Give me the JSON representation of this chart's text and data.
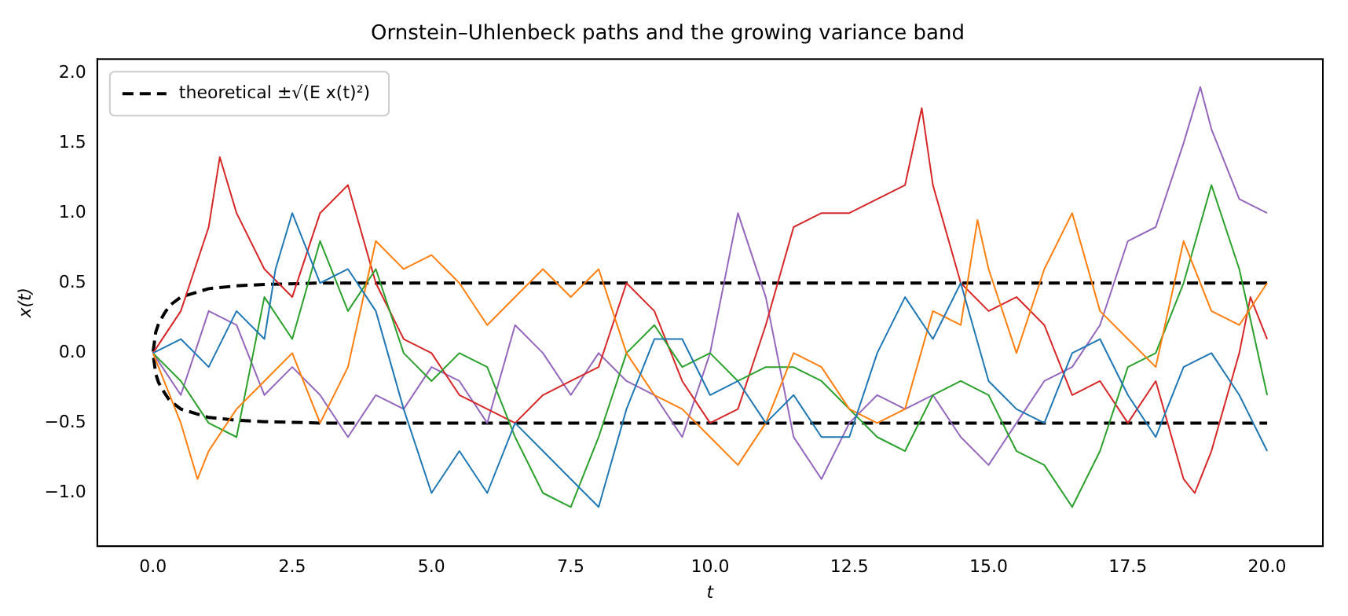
{
  "chart_data": {
    "type": "line",
    "title": "Ornstein–Uhlenbeck paths and the growing variance band",
    "xlabel": "t",
    "ylabel": "x(t)",
    "xlim": [
      -1,
      21
    ],
    "xticks": [
      {
        "value": 0,
        "label": "0.0"
      },
      2.5,
      {
        "value": 5,
        "label": "5.0"
      },
      {
        "value": 7.5,
        "label": "7.5"
      },
      {
        "value": 10,
        "label": "10.0"
      },
      12.5,
      {
        "value": 15,
        "label": "15.0"
      },
      17.5,
      {
        "value": 20,
        "label": "20.0"
      }
    ],
    "ylim": [
      -1.38,
      2.1
    ],
    "yticks": [
      {
        "value": -1,
        "label": "−1.0"
      },
      {
        "value": -0.5,
        "label": "−0.5"
      },
      {
        "value": 0,
        "label": "0.0"
      },
      0.5,
      {
        "value": 1,
        "label": "1.0"
      },
      1.5,
      {
        "value": 2,
        "label": "2.0"
      }
    ],
    "grid": false,
    "legend": "top left",
    "marker": "none",
    "series": [
      {
        "color": "#1f77b4",
        "x": [
          0,
          0.5,
          1,
          1.5,
          2,
          2.2,
          2.5,
          3,
          3.5,
          4,
          4.5,
          5,
          5.5,
          6,
          6.5,
          7,
          7.5,
          8,
          8.5,
          9,
          9.5,
          10,
          10.5,
          11,
          11.5,
          12,
          12.5,
          13,
          13.5,
          14,
          14.5,
          15,
          15.5,
          16,
          16.5,
          17,
          17.5,
          18,
          18.5,
          19,
          19.5,
          20
        ],
        "values": [
          0,
          0.1,
          -0.1,
          0.3,
          0.1,
          0.6,
          1,
          0.5,
          0.6,
          0.3,
          -0.4,
          -1,
          -0.7,
          -1,
          -0.5,
          -0.7,
          -0.9,
          -1.1,
          -0.4,
          0.1,
          0.1,
          -0.3,
          -0.2,
          -0.5,
          -0.3,
          -0.6,
          -0.6,
          0,
          0.4,
          0.1,
          0.5,
          -0.2,
          -0.4,
          -0.5,
          0,
          0.1,
          -0.3,
          -0.6,
          -0.1,
          0,
          -0.3,
          -0.7
        ]
      },
      {
        "color": "#ff7f0e",
        "x": [
          0,
          0.5,
          0.8,
          1,
          1.5,
          2,
          2.5,
          3,
          3.5,
          4,
          4.5,
          5,
          5.5,
          6,
          6.5,
          7,
          7.5,
          8,
          8.5,
          9,
          9.5,
          10,
          10.5,
          11,
          11.5,
          12,
          12.5,
          13,
          13.5,
          14,
          14.5,
          14.8,
          15,
          15.5,
          16,
          16.5,
          17,
          17.5,
          18,
          18.5,
          19,
          19.5,
          20
        ],
        "values": [
          0,
          -0.5,
          -0.9,
          -0.7,
          -0.4,
          -0.2,
          0,
          -0.5,
          -0.1,
          0.8,
          0.6,
          0.7,
          0.5,
          0.2,
          0.4,
          0.6,
          0.4,
          0.6,
          0,
          -0.3,
          -0.4,
          -0.6,
          -0.8,
          -0.5,
          0,
          -0.1,
          -0.4,
          -0.5,
          -0.4,
          0.3,
          0.2,
          0.95,
          0.6,
          0,
          0.6,
          1,
          0.3,
          0.1,
          -0.1,
          0.8,
          0.3,
          0.2,
          0.5
        ]
      },
      {
        "color": "#2ca02c",
        "x": [
          0,
          0.5,
          1,
          1.5,
          2,
          2.5,
          3,
          3.5,
          4,
          4.5,
          5,
          5.5,
          6,
          6.5,
          7,
          7.5,
          8,
          8.5,
          9,
          9.5,
          10,
          10.5,
          11,
          11.5,
          12,
          12.5,
          13,
          13.5,
          14,
          14.5,
          15,
          15.5,
          16,
          16.5,
          17,
          17.5,
          18,
          18.5,
          19,
          19.5,
          20
        ],
        "values": [
          0,
          -0.2,
          -0.5,
          -0.6,
          0.4,
          0.1,
          0.8,
          0.3,
          0.6,
          0,
          -0.2,
          0,
          -0.1,
          -0.6,
          -1,
          -1.1,
          -0.6,
          0,
          0.2,
          -0.1,
          0,
          -0.2,
          -0.1,
          -0.1,
          -0.2,
          -0.4,
          -0.6,
          -0.7,
          -0.3,
          -0.2,
          -0.3,
          -0.7,
          -0.8,
          -1.1,
          -0.7,
          -0.1,
          0,
          0.5,
          1.2,
          0.6,
          -0.3
        ]
      },
      {
        "color": "#d62728",
        "x": [
          0,
          0.5,
          1,
          1.2,
          1.5,
          2,
          2.5,
          3,
          3.5,
          4,
          4.5,
          5,
          5.5,
          6,
          6.5,
          7,
          7.5,
          8,
          8.5,
          9,
          9.5,
          10,
          10.5,
          11,
          11.5,
          12,
          12.5,
          13,
          13.5,
          13.8,
          14,
          14.5,
          15,
          15.5,
          16,
          16.5,
          17,
          17.5,
          18,
          18.5,
          18.7,
          19,
          19.5,
          19.7,
          20
        ],
        "values": [
          0,
          0.3,
          0.9,
          1.4,
          1,
          0.6,
          0.4,
          1,
          1.2,
          0.5,
          0.1,
          0,
          -0.3,
          -0.4,
          -0.5,
          -0.3,
          -0.2,
          -0.1,
          0.5,
          0.3,
          -0.2,
          -0.5,
          -0.4,
          0.2,
          0.9,
          1,
          1,
          1.1,
          1.2,
          1.75,
          1.2,
          0.5,
          0.3,
          0.4,
          0.2,
          -0.3,
          -0.2,
          -0.5,
          -0.2,
          -0.9,
          -1,
          -0.7,
          0,
          0.4,
          0.1
        ]
      },
      {
        "color": "#9467bd",
        "x": [
          0,
          0.5,
          1,
          1.5,
          2,
          2.5,
          3,
          3.5,
          4,
          4.5,
          5,
          5.5,
          6,
          6.5,
          7,
          7.5,
          8,
          8.5,
          9,
          9.5,
          10,
          10.5,
          11,
          11.5,
          12,
          12.5,
          13,
          13.5,
          14,
          14.5,
          15,
          15.5,
          16,
          16.5,
          17,
          17.5,
          18,
          18.5,
          18.8,
          19,
          19.5,
          20
        ],
        "values": [
          0,
          -0.3,
          0.3,
          0.2,
          -0.3,
          -0.1,
          -0.3,
          -0.6,
          -0.3,
          -0.4,
          -0.1,
          -0.2,
          -0.5,
          0.2,
          0,
          -0.3,
          0,
          -0.2,
          -0.3,
          -0.6,
          0,
          1,
          0.4,
          -0.6,
          -0.9,
          -0.5,
          -0.3,
          -0.4,
          -0.3,
          -0.6,
          -0.8,
          -0.5,
          -0.2,
          -0.1,
          0.2,
          0.8,
          0.9,
          1.5,
          1.9,
          1.6,
          1.1,
          1
        ]
      },
      {
        "name": "theoretical ±√(E x(t)²)",
        "color": "#000000",
        "line_style": "dashed",
        "x": [
          20,
          3,
          2,
          1.5,
          1,
          0.5,
          0.3,
          0.2,
          0.1,
          0.05,
          0,
          0.05,
          0.1,
          0.2,
          0.3,
          0.5,
          1,
          1.5,
          2,
          3,
          20
        ],
        "values": [
          0.5,
          0.5,
          0.49,
          0.48,
          0.46,
          0.4,
          0.34,
          0.28,
          0.21,
          0.15,
          0,
          -0.15,
          -0.21,
          -0.28,
          -0.34,
          -0.4,
          -0.46,
          -0.48,
          -0.49,
          -0.5,
          -0.5
        ]
      }
    ]
  }
}
